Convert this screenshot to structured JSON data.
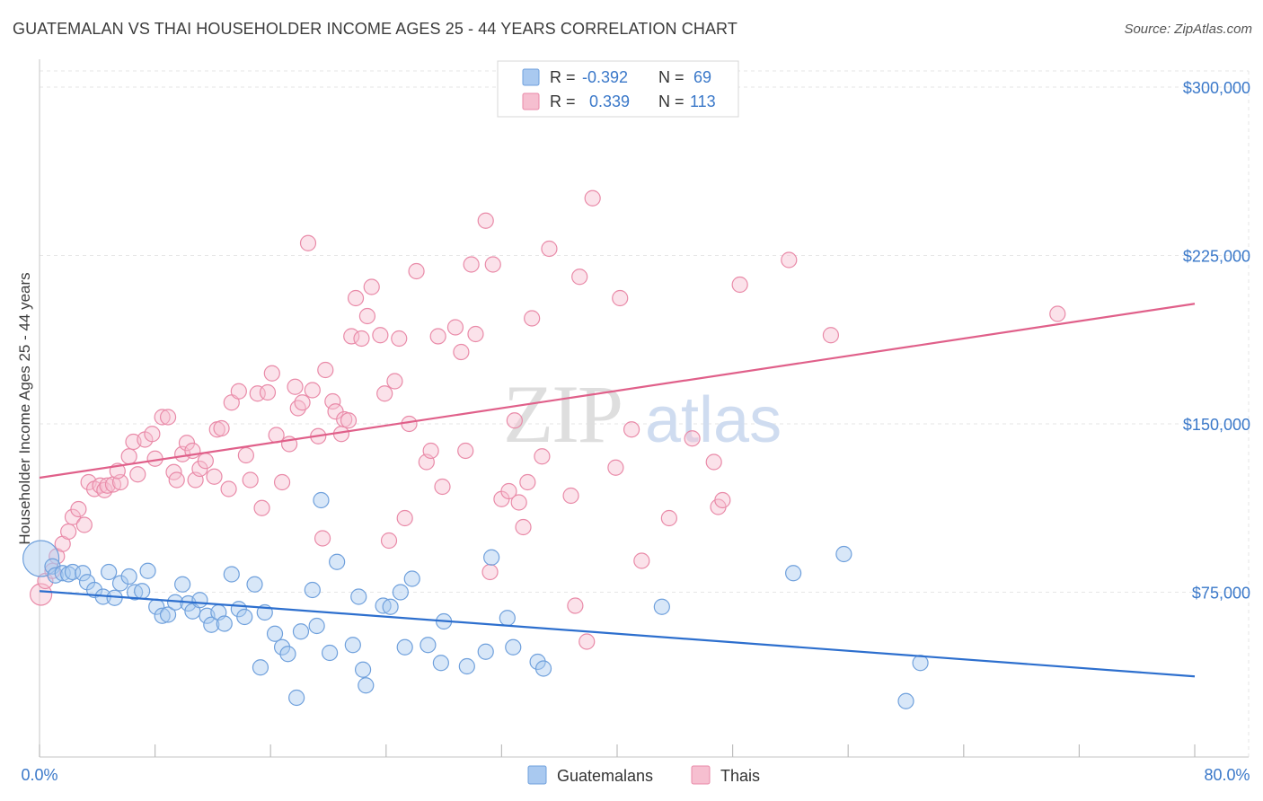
{
  "header": {
    "title": "GUATEMALAN VS THAI HOUSEHOLDER INCOME AGES 25 - 44 YEARS CORRELATION CHART",
    "source": "Source: ZipAtlas.com"
  },
  "watermark": {
    "zip": "ZIP",
    "atlas": "atlas"
  },
  "colors": {
    "blue_fill": "#a9c9f0",
    "blue_stroke": "#6fa0dc",
    "blue_line": "#2d6fce",
    "pink_fill": "#f6bfd0",
    "pink_stroke": "#e98aa8",
    "pink_line": "#e0608a",
    "value_text": "#3a78c9",
    "grid": "#e6e6e6"
  },
  "legend_top": {
    "rows": [
      {
        "r_label": "R =",
        "r_value": "-0.392",
        "n_label": "N =",
        "n_value": "69"
      },
      {
        "r_label": "R =",
        "r_value": "0.339",
        "n_label": "N =",
        "n_value": "113"
      }
    ]
  },
  "legend_bottom": {
    "items": [
      "Guatemalans",
      "Thais"
    ]
  },
  "chart_data": {
    "type": "scatter",
    "ylabel": "Householder Income Ages 25 - 44 years",
    "xlabel": "",
    "xlim": [
      0,
      80
    ],
    "ylim": [
      0,
      300000
    ],
    "x_tick_labels": [
      "0.0%",
      "80.0%"
    ],
    "y_tick_labels": [
      "$75,000",
      "$150,000",
      "$225,000",
      "$300,000"
    ],
    "y_ticks": [
      75000,
      150000,
      225000,
      300000
    ],
    "grid": true,
    "series": [
      {
        "name": "Guatemalans",
        "r": -0.392,
        "n": 69,
        "trend": {
          "x0": 0,
          "y0": 75500,
          "x1": 80,
          "y1": 37500
        },
        "points": [
          [
            0.1,
            90000,
            20
          ],
          [
            0.9,
            86500,
            8
          ],
          [
            1.1,
            82500,
            8
          ],
          [
            1.6,
            83500,
            8
          ],
          [
            2.0,
            83000,
            8
          ],
          [
            2.3,
            84000,
            8
          ],
          [
            3.0,
            83500,
            8
          ],
          [
            3.3,
            79500,
            8
          ],
          [
            3.8,
            76000,
            8
          ],
          [
            4.4,
            73000,
            8
          ],
          [
            4.8,
            84000,
            8
          ],
          [
            5.2,
            72500,
            8
          ],
          [
            5.6,
            79000,
            8
          ],
          [
            6.2,
            82000,
            8
          ],
          [
            6.6,
            75000,
            8
          ],
          [
            7.1,
            75500,
            8
          ],
          [
            7.5,
            84500,
            8
          ],
          [
            8.1,
            68500,
            8
          ],
          [
            8.5,
            64500,
            8
          ],
          [
            8.9,
            65000,
            8
          ],
          [
            9.4,
            70500,
            8
          ],
          [
            9.9,
            78500,
            8
          ],
          [
            10.3,
            70000,
            8
          ],
          [
            10.6,
            66500,
            8
          ],
          [
            11.1,
            71500,
            8
          ],
          [
            11.6,
            64500,
            8
          ],
          [
            11.9,
            60500,
            8
          ],
          [
            12.4,
            66000,
            8
          ],
          [
            12.8,
            61000,
            8
          ],
          [
            13.3,
            83000,
            8
          ],
          [
            13.8,
            67500,
            8
          ],
          [
            14.2,
            64000,
            8
          ],
          [
            14.9,
            78500,
            8
          ],
          [
            15.6,
            66000,
            8
          ],
          [
            15.3,
            41500,
            8
          ],
          [
            16.3,
            56500,
            8
          ],
          [
            16.8,
            50500,
            8
          ],
          [
            17.2,
            47500,
            8
          ],
          [
            17.8,
            28000,
            8
          ],
          [
            18.1,
            57500,
            8
          ],
          [
            18.9,
            76000,
            8
          ],
          [
            19.2,
            60000,
            8
          ],
          [
            19.5,
            116000,
            8
          ],
          [
            20.1,
            48000,
            8
          ],
          [
            20.6,
            88500,
            8
          ],
          [
            21.7,
            51500,
            8
          ],
          [
            22.1,
            73000,
            8
          ],
          [
            22.4,
            40500,
            8
          ],
          [
            22.6,
            33500,
            8
          ],
          [
            23.8,
            69000,
            8
          ],
          [
            24.3,
            68500,
            8
          ],
          [
            25.0,
            75000,
            8
          ],
          [
            25.3,
            50500,
            8
          ],
          [
            25.8,
            81000,
            8
          ],
          [
            26.9,
            51500,
            8
          ],
          [
            27.8,
            43500,
            8
          ],
          [
            28.0,
            62000,
            8
          ],
          [
            29.6,
            42000,
            8
          ],
          [
            30.9,
            48500,
            8
          ],
          [
            31.3,
            90500,
            8
          ],
          [
            32.4,
            63500,
            8
          ],
          [
            32.8,
            50500,
            8
          ],
          [
            34.5,
            44000,
            8
          ],
          [
            34.9,
            41000,
            8
          ],
          [
            43.1,
            68500,
            8
          ],
          [
            52.2,
            83500,
            8
          ],
          [
            55.7,
            92000,
            8
          ],
          [
            60.0,
            26500,
            8
          ],
          [
            61.0,
            43500,
            8
          ]
        ]
      },
      {
        "name": "Thais",
        "r": 0.339,
        "n": 113,
        "trend": {
          "x0": 0,
          "y0": 126000,
          "x1": 80,
          "y1": 203500
        },
        "points": [
          [
            0.1,
            74000,
            12
          ],
          [
            0.4,
            80000,
            8
          ],
          [
            0.9,
            84500,
            8
          ],
          [
            1.2,
            91000,
            8
          ],
          [
            1.6,
            96500,
            8
          ],
          [
            2.0,
            102000,
            8
          ],
          [
            2.3,
            108500,
            8
          ],
          [
            2.7,
            112000,
            8
          ],
          [
            3.1,
            105000,
            8
          ],
          [
            3.4,
            124000,
            8
          ],
          [
            3.8,
            121000,
            8
          ],
          [
            4.2,
            122500,
            8
          ],
          [
            4.5,
            120500,
            8
          ],
          [
            4.7,
            122500,
            8
          ],
          [
            5.1,
            123000,
            8
          ],
          [
            5.6,
            124000,
            8
          ],
          [
            5.4,
            129000,
            8
          ],
          [
            6.2,
            135500,
            8
          ],
          [
            6.5,
            142000,
            8
          ],
          [
            6.8,
            127500,
            8
          ],
          [
            7.3,
            143000,
            8
          ],
          [
            7.8,
            145500,
            8
          ],
          [
            8.0,
            134500,
            8
          ],
          [
            8.5,
            153000,
            8
          ],
          [
            8.9,
            153000,
            8
          ],
          [
            9.3,
            128500,
            8
          ],
          [
            9.5,
            125000,
            8
          ],
          [
            9.9,
            136500,
            8
          ],
          [
            10.2,
            141500,
            8
          ],
          [
            10.6,
            138000,
            8
          ],
          [
            10.8,
            125000,
            8
          ],
          [
            11.1,
            130000,
            8
          ],
          [
            11.5,
            133500,
            8
          ],
          [
            12.1,
            126500,
            8
          ],
          [
            12.3,
            147500,
            8
          ],
          [
            12.6,
            148000,
            8
          ],
          [
            13.1,
            121000,
            8
          ],
          [
            13.3,
            159500,
            8
          ],
          [
            13.8,
            164500,
            8
          ],
          [
            14.3,
            136000,
            8
          ],
          [
            14.6,
            125000,
            8
          ],
          [
            15.1,
            163500,
            8
          ],
          [
            15.4,
            112500,
            8
          ],
          [
            15.8,
            164000,
            8
          ],
          [
            16.1,
            172500,
            8
          ],
          [
            16.4,
            145000,
            8
          ],
          [
            16.8,
            124000,
            8
          ],
          [
            17.3,
            141000,
            8
          ],
          [
            17.7,
            166500,
            8
          ],
          [
            17.9,
            157000,
            8
          ],
          [
            18.2,
            159500,
            8
          ],
          [
            18.6,
            230500,
            8
          ],
          [
            18.9,
            165000,
            8
          ],
          [
            19.3,
            144500,
            8
          ],
          [
            19.6,
            99000,
            8
          ],
          [
            19.8,
            174000,
            8
          ],
          [
            20.3,
            160000,
            8
          ],
          [
            20.5,
            155500,
            8
          ],
          [
            20.9,
            145500,
            8
          ],
          [
            21.1,
            152000,
            8
          ],
          [
            21.4,
            151500,
            8
          ],
          [
            21.6,
            189000,
            8
          ],
          [
            21.9,
            206000,
            8
          ],
          [
            22.3,
            188000,
            8
          ],
          [
            22.7,
            198000,
            8
          ],
          [
            23.0,
            211000,
            8
          ],
          [
            23.6,
            189500,
            8
          ],
          [
            23.9,
            163500,
            8
          ],
          [
            24.2,
            98000,
            8
          ],
          [
            24.6,
            169000,
            8
          ],
          [
            24.9,
            188000,
            8
          ],
          [
            25.3,
            108000,
            8
          ],
          [
            25.6,
            150000,
            8
          ],
          [
            26.1,
            218000,
            8
          ],
          [
            26.8,
            133000,
            8
          ],
          [
            27.1,
            138000,
            8
          ],
          [
            27.6,
            189000,
            8
          ],
          [
            27.9,
            122000,
            8
          ],
          [
            28.8,
            193000,
            8
          ],
          [
            29.2,
            182000,
            8
          ],
          [
            29.5,
            138000,
            8
          ],
          [
            29.9,
            221000,
            8
          ],
          [
            30.2,
            190000,
            8
          ],
          [
            30.9,
            240500,
            8
          ],
          [
            31.2,
            84000,
            8
          ],
          [
            31.4,
            221000,
            8
          ],
          [
            32.0,
            116500,
            8
          ],
          [
            32.5,
            120000,
            8
          ],
          [
            32.9,
            151500,
            8
          ],
          [
            33.2,
            115000,
            8
          ],
          [
            33.5,
            104000,
            8
          ],
          [
            33.8,
            124000,
            8
          ],
          [
            34.1,
            197000,
            8
          ],
          [
            34.8,
            135500,
            8
          ],
          [
            35.3,
            228000,
            8
          ],
          [
            36.8,
            118000,
            8
          ],
          [
            37.1,
            69000,
            8
          ],
          [
            37.4,
            215500,
            8
          ],
          [
            37.9,
            53000,
            8
          ],
          [
            38.3,
            250500,
            8
          ],
          [
            39.9,
            130500,
            8
          ],
          [
            40.2,
            206000,
            8
          ],
          [
            41.0,
            147500,
            8
          ],
          [
            41.7,
            89000,
            8
          ],
          [
            43.6,
            108000,
            8
          ],
          [
            45.2,
            143500,
            8
          ],
          [
            46.7,
            133000,
            8
          ],
          [
            47.0,
            113000,
            8
          ],
          [
            47.3,
            116000,
            8
          ],
          [
            48.5,
            212000,
            8
          ],
          [
            51.9,
            223000,
            8
          ],
          [
            54.8,
            189500,
            8
          ],
          [
            70.5,
            199000,
            8
          ]
        ]
      }
    ]
  }
}
